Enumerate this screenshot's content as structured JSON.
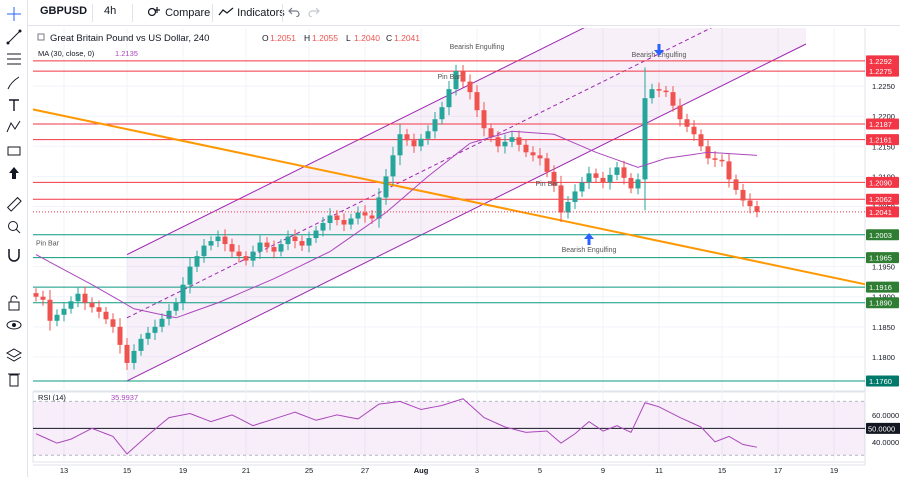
{
  "toolbar": {
    "symbol": "GBPUSD",
    "interval": "4h",
    "compare_label": "Compare",
    "indicators_label": "Indicators"
  },
  "left_tools": [
    "crosshair-icon",
    "trend-line-icon",
    "fib-icon",
    "brush-icon",
    "text-icon",
    "pattern-icon",
    "measure-icon",
    "arrow-icon",
    "ruler-icon",
    "zoom-icon",
    "magnet-icon",
    "lock-icon",
    "eye-icon",
    "layers-icon",
    "trash-icon"
  ],
  "legend": {
    "title": "Great Britain Pound vs US Dollar, 240",
    "o_label": "O",
    "o": "1.2051",
    "h_label": "H",
    "h": "1.2055",
    "l_label": "L",
    "l": "1.2040",
    "c_label": "C",
    "c": "1.2041",
    "ma_label": "MA (30, close, 0)",
    "ma_value": "1.2135"
  },
  "rsi_legend": {
    "label": "RSI (14)",
    "value": "35.9937"
  },
  "colors": {
    "up": "#26a69a",
    "down": "#ef5350",
    "ma": "#ab47bc",
    "resistance": "#f23645",
    "support": "#089981",
    "orange": "#ff9800",
    "channel": "#9c27b0",
    "blue": "#2962ff"
  },
  "chart_data": {
    "type": "candlestick",
    "symbol": "GBPUSD",
    "timeframe": "4h",
    "ylim": [
      1.1745,
      1.232
    ],
    "price_ticks": [
      "1.2250",
      "1.2200",
      "1.2150",
      "1.2100",
      "1.2050",
      "1.1950",
      "1.1900",
      "1.1850",
      "1.1800"
    ],
    "x_tick_labels": [
      "13",
      "15",
      "19",
      "21",
      "25",
      "27",
      "Aug",
      "3",
      "5",
      "9",
      "11",
      "15",
      "17",
      "19"
    ],
    "x_tick_index": [
      4,
      13,
      21,
      30,
      39,
      47,
      55,
      63,
      72,
      81,
      89,
      98,
      106,
      114
    ],
    "candle_count": 104,
    "close_anchors": [
      [
        0,
        1.19
      ],
      [
        1,
        1.1895
      ],
      [
        2,
        1.186
      ],
      [
        4,
        1.188
      ],
      [
        6,
        1.1905
      ],
      [
        7,
        1.189
      ],
      [
        9,
        1.1875
      ],
      [
        11,
        1.185
      ],
      [
        13,
        1.179
      ],
      [
        15,
        1.183
      ],
      [
        17,
        1.185
      ],
      [
        20,
        1.189
      ],
      [
        22,
        1.195
      ],
      [
        24,
        1.1985
      ],
      [
        26,
        1.2
      ],
      [
        28,
        1.1975
      ],
      [
        30,
        1.196
      ],
      [
        32,
        1.199
      ],
      [
        34,
        1.1975
      ],
      [
        36,
        1.2
      ],
      [
        38,
        1.1985
      ],
      [
        40,
        1.201
      ],
      [
        42,
        1.2035
      ],
      [
        44,
        1.202
      ],
      [
        46,
        1.204
      ],
      [
        48,
        1.203
      ],
      [
        50,
        1.21
      ],
      [
        52,
        1.217
      ],
      [
        54,
        1.215
      ],
      [
        56,
        1.2175
      ],
      [
        58,
        1.2215
      ],
      [
        60,
        1.2275
      ],
      [
        62,
        1.224
      ],
      [
        64,
        1.218
      ],
      [
        66,
        1.215
      ],
      [
        68,
        1.2165
      ],
      [
        70,
        1.214
      ],
      [
        72,
        1.213
      ],
      [
        74,
        1.2085
      ],
      [
        75,
        1.204
      ],
      [
        77,
        1.2075
      ],
      [
        79,
        1.2105
      ],
      [
        81,
        1.209
      ],
      [
        83,
        1.2115
      ],
      [
        85,
        1.208
      ],
      [
        86,
        1.2095
      ],
      [
        87,
        1.223
      ],
      [
        88,
        1.2245
      ],
      [
        90,
        1.224
      ],
      [
        92,
        1.2195
      ],
      [
        94,
        1.217
      ],
      [
        96,
        1.213
      ],
      [
        98,
        1.2125
      ],
      [
        99,
        1.2095
      ],
      [
        101,
        1.206
      ],
      [
        103,
        1.2041
      ]
    ],
    "ma_series": {
      "name": "MA (30, close, 0)",
      "anchors": [
        [
          0,
          1.197
        ],
        [
          8,
          1.192
        ],
        [
          14,
          1.188
        ],
        [
          20,
          1.1865
        ],
        [
          26,
          1.189
        ],
        [
          34,
          1.193
        ],
        [
          42,
          1.1975
        ],
        [
          50,
          1.204
        ],
        [
          56,
          1.21
        ],
        [
          62,
          1.2155
        ],
        [
          68,
          1.2175
        ],
        [
          74,
          1.217
        ],
        [
          80,
          1.214
        ],
        [
          86,
          1.2115
        ],
        [
          90,
          1.213
        ],
        [
          96,
          1.214
        ],
        [
          103,
          1.2135
        ]
      ]
    },
    "horizontal_lines": [
      {
        "value": 1.2292,
        "label": "1.2292",
        "kind": "resistance"
      },
      {
        "value": 1.2275,
        "label": "1.2275",
        "kind": "resistance"
      },
      {
        "value": 1.2187,
        "label": "1.2187",
        "kind": "resistance"
      },
      {
        "value": 1.2161,
        "label": "1.2161",
        "kind": "resistance"
      },
      {
        "value": 1.209,
        "label": "1.2090",
        "kind": "resistance"
      },
      {
        "value": 1.2062,
        "label": "1.2062",
        "kind": "resistance"
      },
      {
        "value": 1.2003,
        "label": "1.2003",
        "kind": "support"
      },
      {
        "value": 1.1965,
        "label": "1.1965",
        "kind": "support"
      },
      {
        "value": 1.1916,
        "label": "1.1916",
        "kind": "support"
      },
      {
        "value": 1.189,
        "label": "1.1890",
        "kind": "support"
      },
      {
        "value": 1.176,
        "label": "1.1760",
        "kind": "support"
      }
    ],
    "current_price": {
      "value": 1.2041,
      "label": "1.2041"
    },
    "orange_trendline": [
      [
        -4,
        1.222
      ],
      [
        131,
        1.189
      ]
    ],
    "channel_lower": [
      [
        13,
        1.176
      ],
      [
        110,
        1.232
      ]
    ],
    "channel_upper": [
      [
        13,
        1.197
      ],
      [
        110,
        1.253
      ]
    ],
    "channel_mid": [
      [
        13,
        1.1865
      ],
      [
        110,
        1.2425
      ]
    ],
    "annotations": [
      {
        "text": "Pin Bar",
        "index": 0,
        "price": 1.1985
      },
      {
        "text": "Pin Bar",
        "index": 59,
        "price": 1.2262
      },
      {
        "text": "Bearish Engulfing",
        "index": 63,
        "price": 1.2312
      },
      {
        "text": "Bearish Engulfing",
        "index": 89,
        "price": 1.2298
      },
      {
        "text": "Pin Bar",
        "index": 73,
        "price": 1.2084
      },
      {
        "text": "Bearish Engulfing",
        "index": 79,
        "price": 1.1974
      }
    ],
    "arrows": [
      {
        "direction": "down",
        "index": 89,
        "price": 1.231
      },
      {
        "direction": "up",
        "index": 79,
        "price": 1.1996
      }
    ],
    "rsi": {
      "name": "RSI (14)",
      "ylim": [
        25,
        77
      ],
      "ticks": [
        "60.0000",
        "40.0000"
      ],
      "midline": {
        "value": 50,
        "label": "50.0000"
      },
      "anchors": [
        [
          0,
          46
        ],
        [
          3,
          39
        ],
        [
          5,
          42
        ],
        [
          8,
          50
        ],
        [
          11,
          44
        ],
        [
          13,
          31
        ],
        [
          16,
          45
        ],
        [
          19,
          58
        ],
        [
          22,
          61
        ],
        [
          25,
          55
        ],
        [
          28,
          60
        ],
        [
          31,
          52
        ],
        [
          34,
          57
        ],
        [
          37,
          62
        ],
        [
          40,
          56
        ],
        [
          43,
          60
        ],
        [
          46,
          57
        ],
        [
          49,
          68
        ],
        [
          52,
          70
        ],
        [
          55,
          64
        ],
        [
          58,
          67
        ],
        [
          61,
          72
        ],
        [
          64,
          58
        ],
        [
          67,
          51
        ],
        [
          70,
          47
        ],
        [
          73,
          48
        ],
        [
          75,
          39
        ],
        [
          77,
          46
        ],
        [
          79,
          55
        ],
        [
          81,
          48
        ],
        [
          83,
          52
        ],
        [
          85,
          47
        ],
        [
          87,
          69
        ],
        [
          89,
          66
        ],
        [
          92,
          58
        ],
        [
          95,
          51
        ],
        [
          97,
          40
        ],
        [
          99,
          44
        ],
        [
          101,
          38
        ],
        [
          103,
          36
        ]
      ]
    }
  }
}
